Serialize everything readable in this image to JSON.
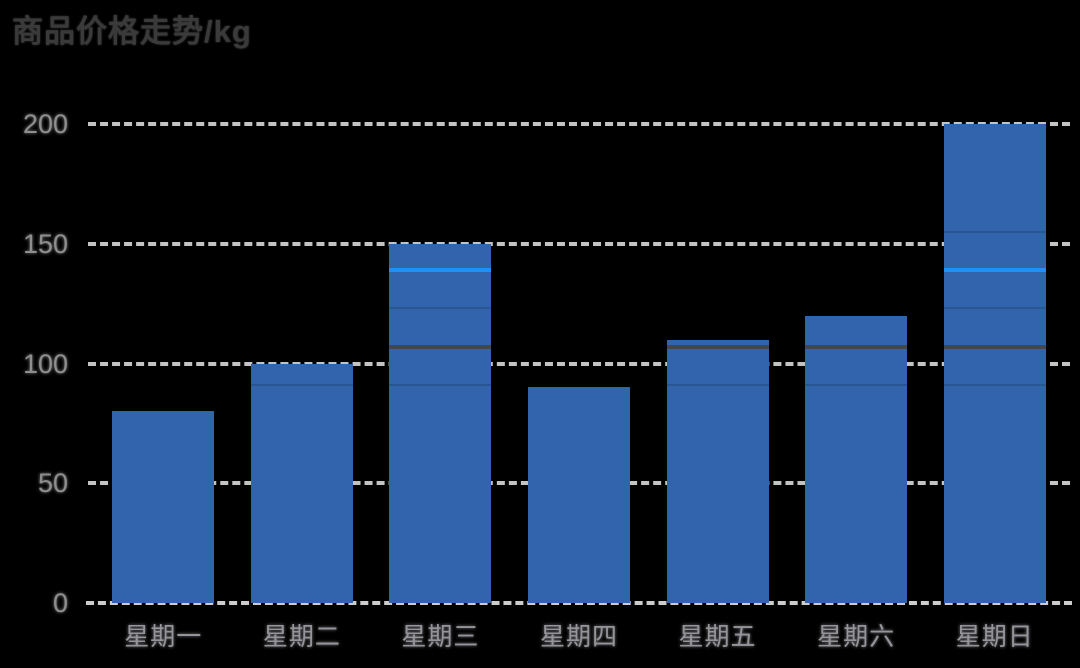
{
  "chart_data": {
    "type": "bar",
    "title": "商品价格走势/kg",
    "categories": [
      "星期一",
      "星期二",
      "星期三",
      "星期四",
      "星期五",
      "星期六",
      "星期日"
    ],
    "values": [
      80,
      100,
      150,
      90,
      110,
      120,
      200
    ],
    "xlabel": "",
    "ylabel": "",
    "ylim": [
      0,
      200
    ],
    "yticks": [
      0,
      50,
      100,
      150,
      200
    ],
    "grid": "horizontal-dashed",
    "legend": "none",
    "bar_color": "#3164ad",
    "gridline_color": "#d4d4d4",
    "axis_label_color": "#8e8e8e",
    "title_color": "#3a3a3a",
    "background_color": "#000000",
    "overlay_lines": [
      {
        "value": 155,
        "color": "#2a5694",
        "thickness": 2,
        "name": "faint-separator-155"
      },
      {
        "value": 139,
        "color": "#1f8ffb",
        "thickness": 4,
        "name": "bright-blue-reference-139"
      },
      {
        "value": 123,
        "color": "#2a5694",
        "thickness": 2,
        "name": "faint-separator-123"
      },
      {
        "value": 107,
        "color": "#474747",
        "thickness": 4,
        "name": "gray-reference-107"
      },
      {
        "value": 91,
        "color": "#2a5694",
        "thickness": 2,
        "name": "faint-separator-91"
      }
    ]
  }
}
